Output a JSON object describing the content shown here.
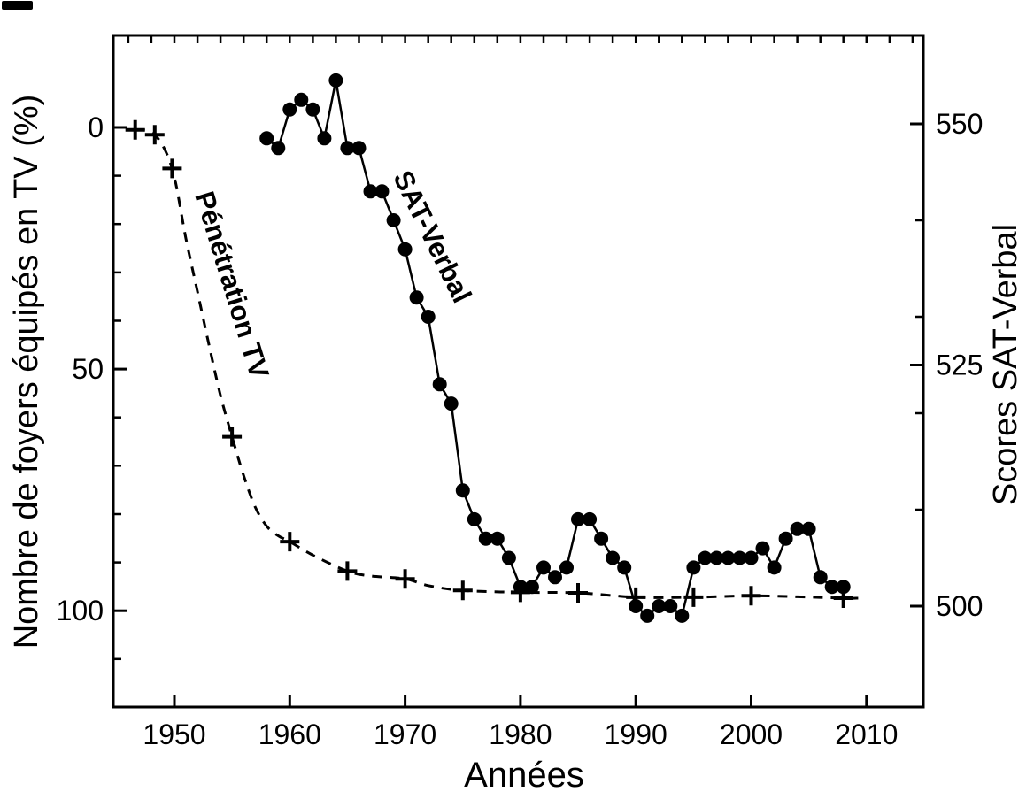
{
  "page": {
    "background": "#ffffff",
    "ink": "#000000"
  },
  "chart_data": {
    "type": "line",
    "title": "",
    "xlabel": "Années",
    "x_axis": {
      "ticks": [
        1950,
        1960,
        1970,
        1980,
        1990,
        2000,
        2010
      ],
      "minor_tick_step_years": 2,
      "range_years": [
        1944.7,
        2014.9
      ]
    },
    "left_axis": {
      "label": "Nombre de foyers équipés en TV (%)",
      "ticks": [
        0,
        50,
        100
      ],
      "minor_tick_step": 10,
      "inverted": true,
      "units": "%"
    },
    "right_axis": {
      "label": "Scores SAT-Verbal",
      "ticks": [
        550,
        525,
        500
      ],
      "minor_tick_step": 10
    },
    "grid": false,
    "legend": "rotated inline labels on curves",
    "series": [
      {
        "name": "Pénétration TV",
        "axis": "left",
        "line_style": "dashed",
        "marker": "plus",
        "marker_points": [
          [
            1946.6,
            0.5
          ],
          [
            1948.3,
            1.5
          ],
          [
            1949.8,
            8.5
          ],
          [
            1955,
            64
          ],
          [
            1960,
            85.7
          ],
          [
            1965,
            91.8
          ],
          [
            1970,
            93.4
          ],
          [
            1975,
            95.8
          ],
          [
            1980,
            96.2
          ],
          [
            1985,
            96.3
          ],
          [
            1990,
            97.2
          ],
          [
            1995,
            97.2
          ],
          [
            2000,
            96.9
          ],
          [
            2008,
            97.4
          ]
        ],
        "curve_points": [
          [
            1946.6,
            0.5
          ],
          [
            1948.3,
            1.5
          ],
          [
            1949.8,
            8.5
          ],
          [
            1951,
            23
          ],
          [
            1952,
            34
          ],
          [
            1953,
            45
          ],
          [
            1954,
            55.5
          ],
          [
            1955,
            64
          ],
          [
            1956,
            72
          ],
          [
            1957,
            78.5
          ],
          [
            1958,
            82.5
          ],
          [
            1959,
            84.5
          ],
          [
            1960,
            85.7
          ],
          [
            1962,
            88.5
          ],
          [
            1965,
            91.8
          ],
          [
            1967,
            92.8
          ],
          [
            1970,
            93.4
          ],
          [
            1972,
            94.8
          ],
          [
            1975,
            95.8
          ],
          [
            1980,
            96.2
          ],
          [
            1985,
            96.3
          ],
          [
            1990,
            97.2
          ],
          [
            1995,
            97.2
          ],
          [
            2000,
            96.9
          ],
          [
            2004,
            97.1
          ],
          [
            2008,
            97.4
          ],
          [
            2009.3,
            97.4
          ]
        ]
      },
      {
        "name": "SAT-Verbal",
        "axis": "right",
        "line_style": "solid",
        "marker": "filled-circle",
        "years": [
          1958,
          1959,
          1960,
          1961,
          1962,
          1963,
          1964,
          1965,
          1966,
          1967,
          1968,
          1969,
          1970,
          1971,
          1972,
          1973,
          1974,
          1975,
          1976,
          1977,
          1978,
          1979,
          1980,
          1981,
          1982,
          1983,
          1984,
          1985,
          1986,
          1987,
          1988,
          1989,
          1990,
          1991,
          1992,
          1993,
          1994,
          1995,
          1996,
          1997,
          1998,
          1999,
          2000,
          2001,
          2002,
          2003,
          2004,
          2005,
          2006,
          2007,
          2008
        ],
        "scores": [
          548.5,
          547.5,
          551.5,
          552.5,
          551.5,
          548.5,
          554.5,
          547.5,
          547.5,
          543,
          543,
          540,
          537,
          532,
          530,
          523,
          521,
          512,
          509,
          507,
          507,
          505,
          502,
          502,
          504,
          503,
          504,
          509,
          509,
          507,
          505,
          504,
          500,
          499,
          500,
          500,
          499,
          504,
          505,
          505,
          505,
          505,
          505,
          506,
          504,
          507,
          508,
          508,
          503,
          502,
          502
        ]
      }
    ]
  }
}
